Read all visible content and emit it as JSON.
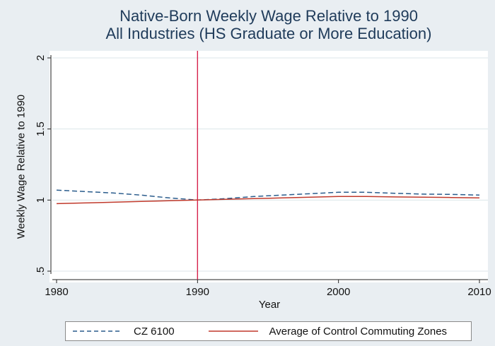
{
  "chart_data": {
    "type": "line",
    "title": [
      "Native-Born Weekly Wage Relative to 1990",
      "All Industries (HS Graduate or More Education)"
    ],
    "xlabel": "Year",
    "ylabel": "Weekly Wage Relative to 1990",
    "xlim": [
      1980,
      2010
    ],
    "ylim": [
      0.5,
      2
    ],
    "xticks": [
      1980,
      1990,
      2000,
      2010
    ],
    "xtick_labels": [
      "1980",
      "1990",
      "2000",
      "2010"
    ],
    "yticks": [
      0.5,
      1,
      1.5,
      2
    ],
    "ytick_labels": [
      ".5",
      "1",
      "1.5",
      "2"
    ],
    "reference_line_x": 1990,
    "series": [
      {
        "name": "CZ 6100",
        "style": "dashed",
        "color": "#2a5c8c",
        "x": [
          1980,
          1982,
          1984,
          1986,
          1988,
          1990,
          1992,
          1994,
          1996,
          1998,
          2000,
          2002,
          2004,
          2006,
          2008,
          2010
        ],
        "y": [
          1.07,
          1.06,
          1.05,
          1.035,
          1.015,
          1.0,
          1.01,
          1.025,
          1.035,
          1.045,
          1.055,
          1.055,
          1.048,
          1.042,
          1.04,
          1.035
        ]
      },
      {
        "name": "Average of Control Commuting Zones",
        "style": "solid",
        "color": "#c0392b",
        "x": [
          1980,
          1982,
          1984,
          1986,
          1988,
          1990,
          1992,
          1994,
          1996,
          1998,
          2000,
          2002,
          2004,
          2006,
          2008,
          2010
        ],
        "y": [
          0.975,
          0.98,
          0.985,
          0.99,
          0.995,
          1.0,
          1.005,
          1.01,
          1.015,
          1.02,
          1.025,
          1.025,
          1.022,
          1.02,
          1.018,
          1.015
        ]
      }
    ]
  },
  "legend": {
    "items": [
      "CZ 6100",
      "Average of Control Commuting Zones"
    ]
  }
}
